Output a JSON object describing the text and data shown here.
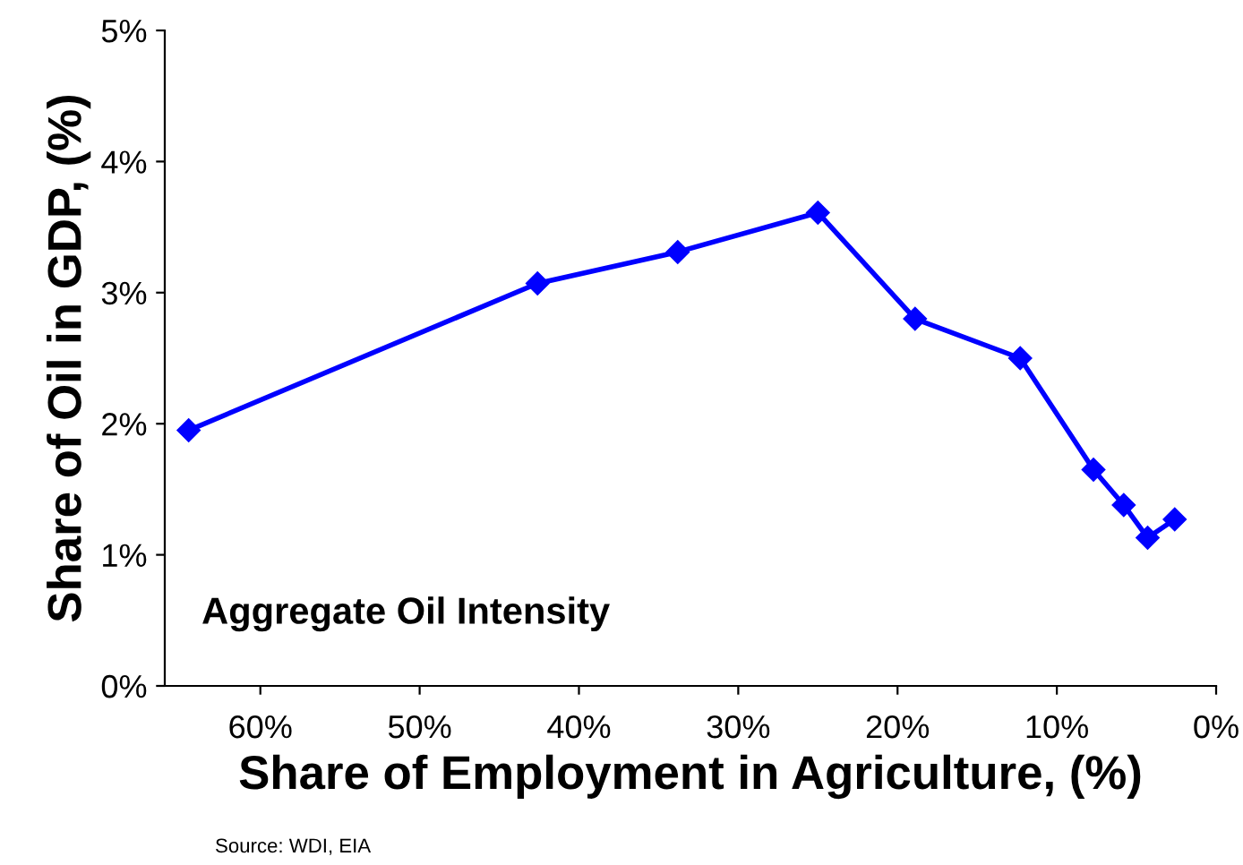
{
  "chart_data": {
    "type": "line",
    "xlabel": "Share of Employment in Agriculture, (%)",
    "ylabel": "Share of Oil in GDP, (%)",
    "x": [
      64.5,
      42.6,
      33.8,
      25.0,
      18.9,
      12.3,
      7.7,
      5.8,
      4.3,
      2.6
    ],
    "series": [
      {
        "color": "#0000ff",
        "values": [
          1.95,
          3.07,
          3.31,
          3.61,
          2.8,
          2.5,
          1.65,
          1.38,
          1.13,
          1.27
        ]
      }
    ],
    "xlim": [
      66,
      0
    ],
    "xticks": [
      {
        "value": 60,
        "label": "60%"
      },
      {
        "value": 50,
        "label": "50%"
      },
      {
        "value": 40,
        "label": "40%"
      },
      {
        "value": 30,
        "label": "30%"
      },
      {
        "value": 20,
        "label": "20%"
      },
      {
        "value": 10,
        "label": "10%"
      },
      {
        "value": 0,
        "label": "0%"
      }
    ],
    "ylim": [
      0,
      5
    ],
    "yticks": [
      {
        "value": 0,
        "label": "0%"
      },
      {
        "value": 1,
        "label": "1%"
      },
      {
        "value": 2,
        "label": "2%"
      },
      {
        "value": 3,
        "label": "3%"
      },
      {
        "value": 4,
        "label": "4%"
      },
      {
        "value": 5,
        "label": "5%"
      }
    ],
    "marker": "diamond",
    "line_style": "solid",
    "grid": false,
    "legend": false,
    "annotations": [
      "Aggregate Oil Intensity",
      "Source: WDI, EIA"
    ]
  }
}
